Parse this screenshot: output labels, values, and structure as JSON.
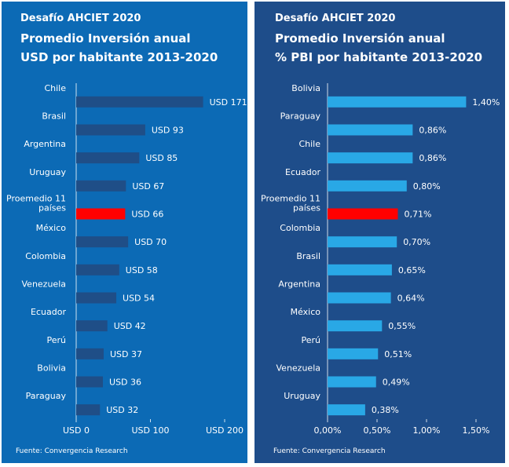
{
  "colors": {
    "left_bg": "#0c6ab5",
    "right_bg": "#1e4d8a",
    "left_bar": "#1f4e87",
    "right_bar": "#29a8e6",
    "highlight": "#ff0000",
    "text": "#ffffff"
  },
  "left": {
    "title_line1": "Desafío AHCIET 2020",
    "title_line2": "Promedio Inversión anual",
    "title_line3": "USD por habitante 2013-2020",
    "source": "Fuente:  Convergencia Research"
  },
  "right": {
    "title_line1": "Desafío AHCIET 2020",
    "title_line2": "Promedio Inversión anual",
    "title_line3": "% PBI por habitante 2013-2020",
    "source": "Fuente:  Convergencia Research"
  },
  "chart_data": [
    {
      "type": "bar",
      "orientation": "horizontal",
      "title": "Desafío AHCIET 2020 Promedio Inversión anual USD por habitante 2013-2020",
      "categories": [
        "Chile",
        "Brasil",
        "Argentina",
        "Uruguay",
        "Proemedio 11 países",
        "México",
        "Colombia",
        "Venezuela",
        "Ecuador",
        "Perú",
        "Bolivia",
        "Paraguay"
      ],
      "values": [
        171,
        93,
        85,
        67,
        66,
        70,
        58,
        54,
        42,
        37,
        36,
        32
      ],
      "data_labels": [
        "USD 171",
        "USD 93",
        "USD 85",
        "USD 67",
        "USD 66",
        "USD 70",
        "USD 58",
        "USD 54",
        "USD 42",
        "USD 37",
        "USD 36",
        "USD 32"
      ],
      "highlight_index": 4,
      "xlim": [
        0,
        200
      ],
      "xticks": [
        0,
        100,
        200
      ],
      "xtick_labels": [
        "USD 0",
        "USD 100",
        "USD 200"
      ],
      "grid": false
    },
    {
      "type": "bar",
      "orientation": "horizontal",
      "title": "Desafío AHCIET 2020 Promedio Inversión anual % PBI por habitante 2013-2020",
      "categories": [
        "Bolivia",
        "Paraguay",
        "Chile",
        "Ecuador",
        "Proemedio 11 países",
        "Colombia",
        "Brasil",
        "Argentina",
        "México",
        "Perú",
        "Venezuela",
        "Uruguay"
      ],
      "values": [
        1.4,
        0.86,
        0.86,
        0.8,
        0.71,
        0.7,
        0.65,
        0.64,
        0.55,
        0.51,
        0.49,
        0.38
      ],
      "data_labels": [
        "1,40%",
        "0,86%",
        "0,86%",
        "0,80%",
        "0,71%",
        "0,70%",
        "0,65%",
        "0,64%",
        "0,55%",
        "0,51%",
        "0,49%",
        "0,38%"
      ],
      "highlight_index": 4,
      "xlim": [
        0,
        1.5
      ],
      "xticks": [
        0,
        0.5,
        1.0,
        1.5
      ],
      "xtick_labels": [
        "0,00%",
        "0,50%",
        "1,00%",
        "1,50%"
      ],
      "grid": false
    }
  ]
}
